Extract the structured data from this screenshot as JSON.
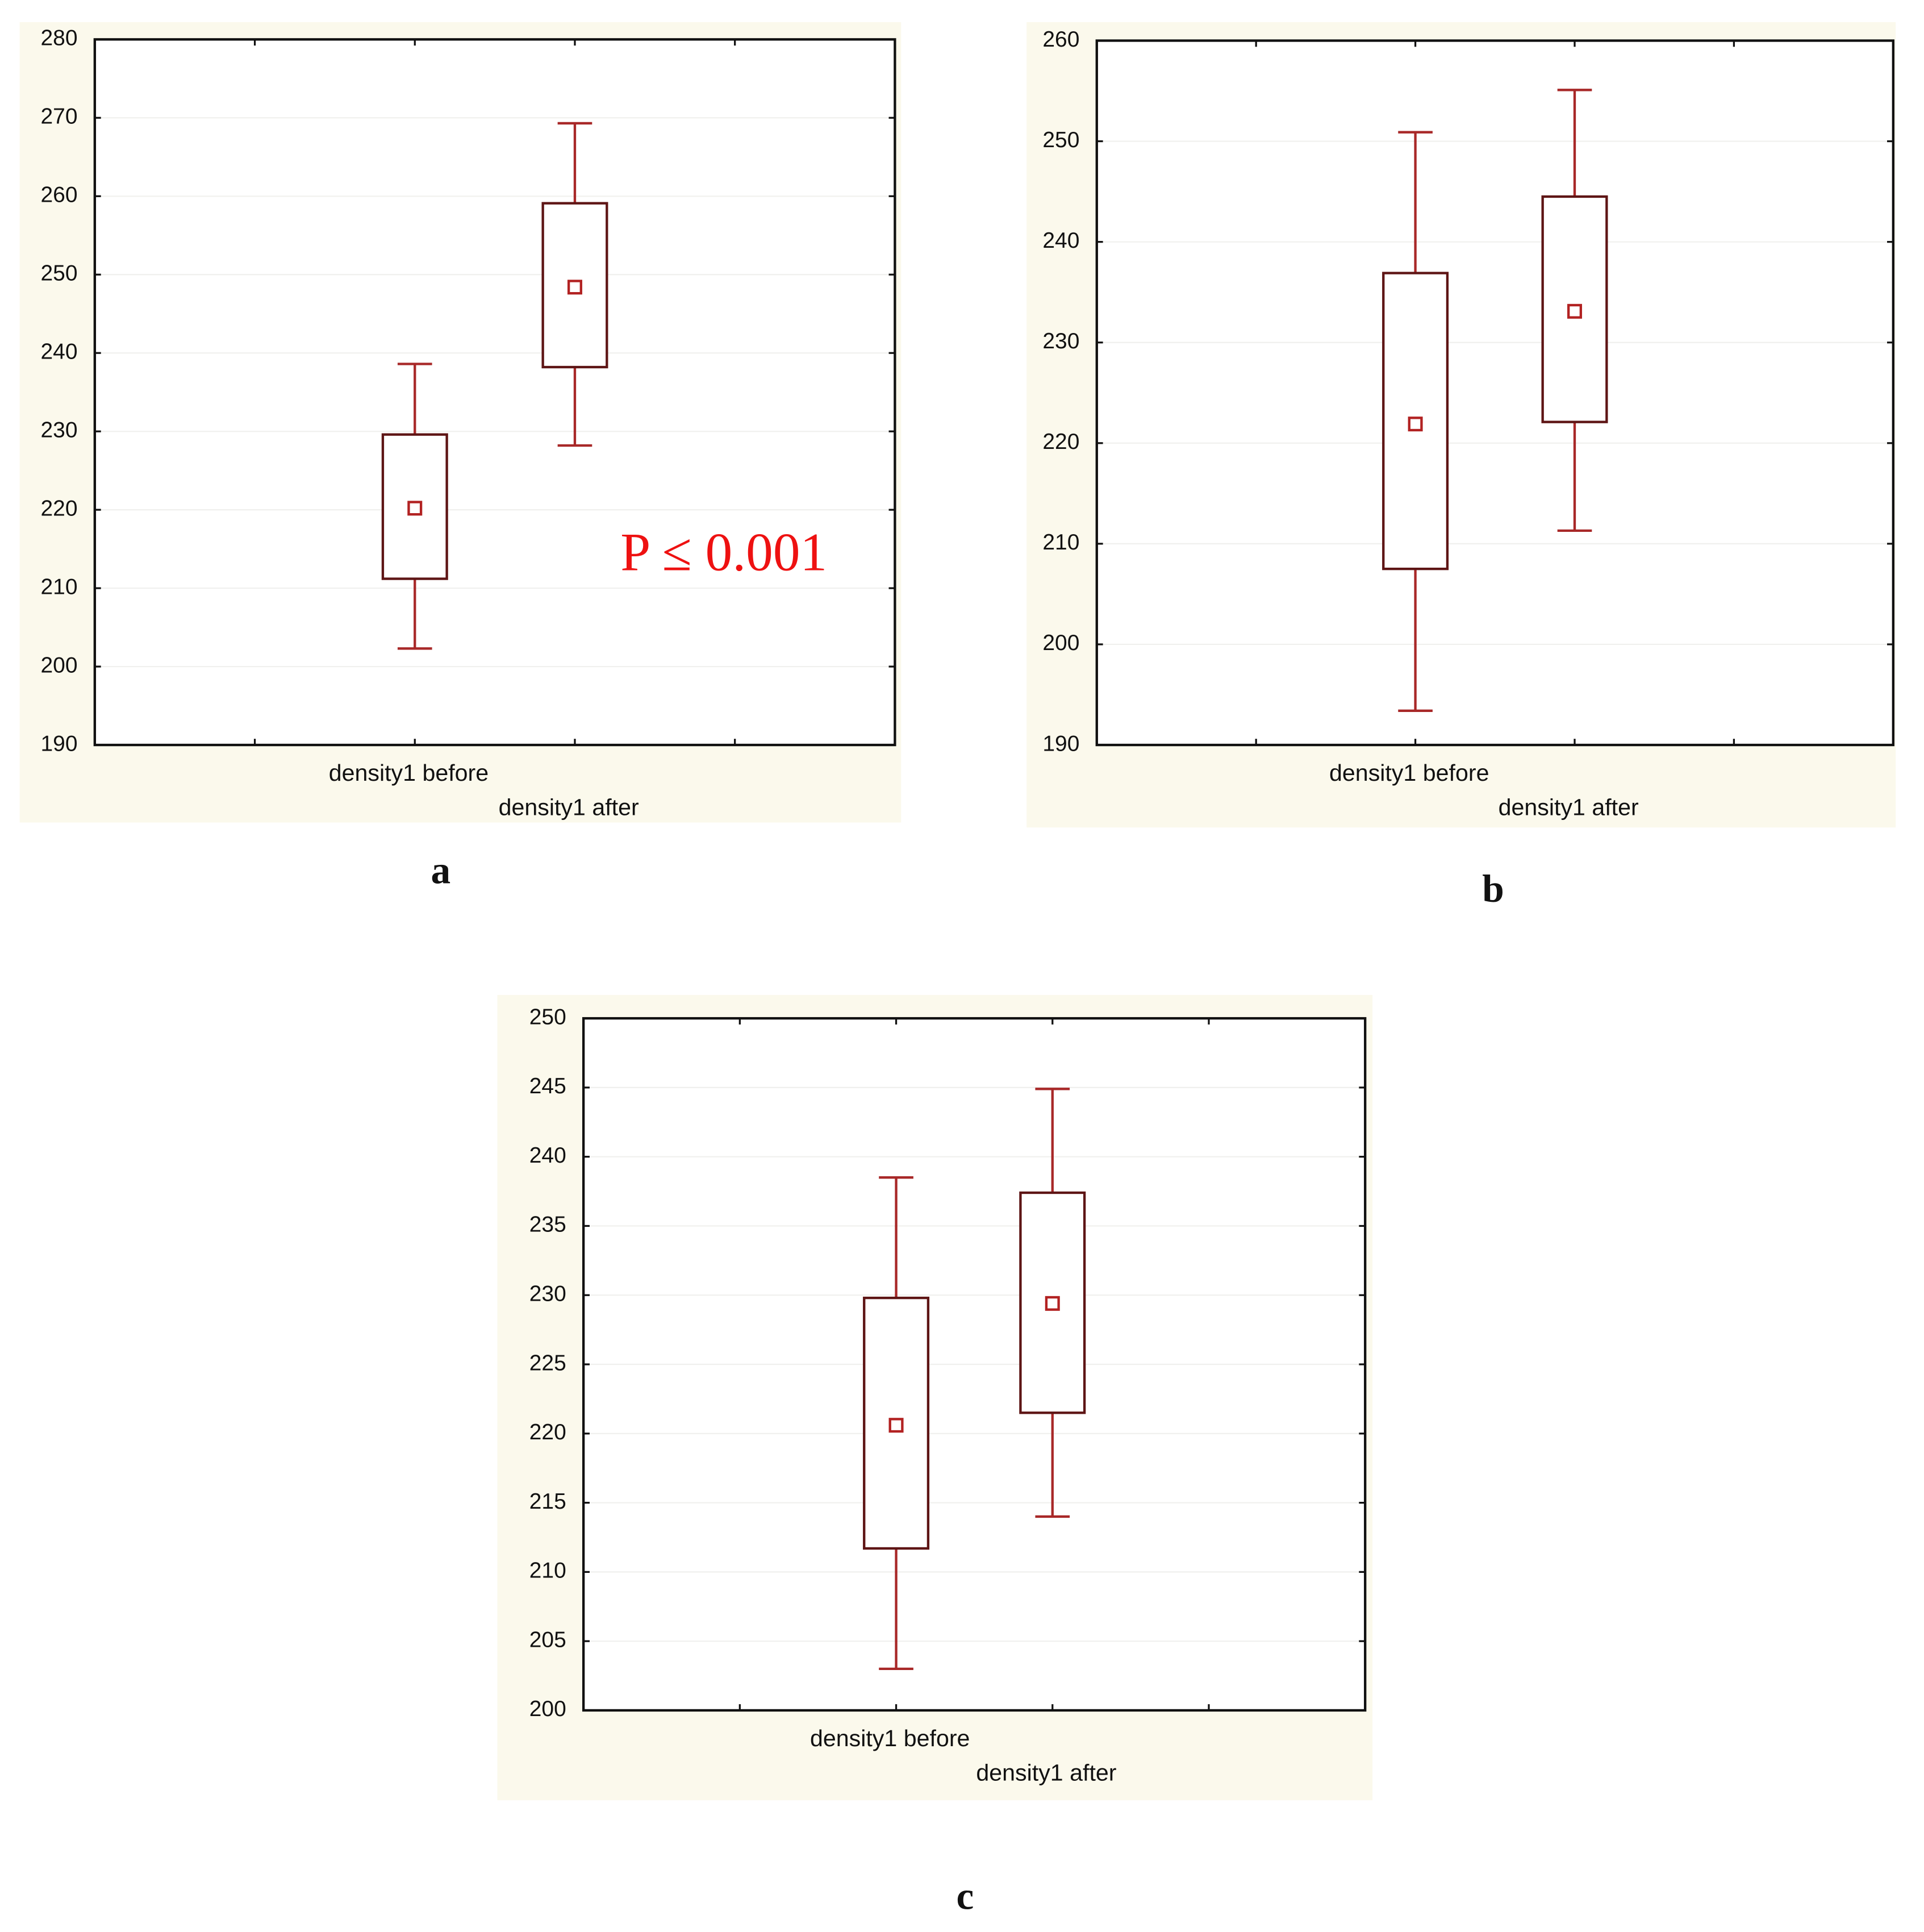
{
  "chart_data": [
    {
      "type": "box",
      "panel_label": "a",
      "categories": [
        "density1 before",
        "density1 after"
      ],
      "mean": [
        220.2,
        248.4
      ],
      "box_low": [
        211.2,
        238.2
      ],
      "box_high": [
        229.6,
        259.1
      ],
      "whisker_low": [
        202.3,
        228.2
      ],
      "whisker_high": [
        238.6,
        269.3
      ],
      "ylim": [
        190,
        280
      ],
      "yticks": [
        190,
        200,
        210,
        220,
        230,
        240,
        250,
        260,
        270,
        280
      ],
      "grid": true,
      "box_color": "#5e1515",
      "whisker_color": "#a82828",
      "mean_color": "#b22222",
      "annotation": "P ≤ 0.001",
      "annotation_color": "#ee1111"
    },
    {
      "type": "box",
      "panel_label": "b",
      "categories": [
        "density1 before",
        "density1 after"
      ],
      "mean": [
        221.9,
        233.1
      ],
      "box_low": [
        207.5,
        222.1
      ],
      "box_high": [
        236.9,
        244.5
      ],
      "whisker_low": [
        193.4,
        211.3
      ],
      "whisker_high": [
        250.9,
        255.1
      ],
      "ylim": [
        190,
        260
      ],
      "yticks": [
        190,
        200,
        210,
        220,
        230,
        240,
        250,
        260
      ],
      "grid": true,
      "box_color": "#5e1515",
      "whisker_color": "#a82828",
      "mean_color": "#b22222"
    },
    {
      "type": "box",
      "panel_label": "c",
      "categories": [
        "density1 before",
        "density1 after"
      ],
      "mean": [
        220.6,
        229.4
      ],
      "box_low": [
        211.7,
        221.5
      ],
      "box_high": [
        229.8,
        237.4
      ],
      "whisker_low": [
        203.0,
        214.0
      ],
      "whisker_high": [
        238.5,
        244.9
      ],
      "ylim": [
        200,
        250
      ],
      "yticks": [
        200,
        205,
        210,
        215,
        220,
        225,
        230,
        235,
        240,
        245,
        250
      ],
      "grid": true,
      "box_color": "#5e1515",
      "whisker_color": "#a82828",
      "mean_color": "#b22222"
    }
  ]
}
